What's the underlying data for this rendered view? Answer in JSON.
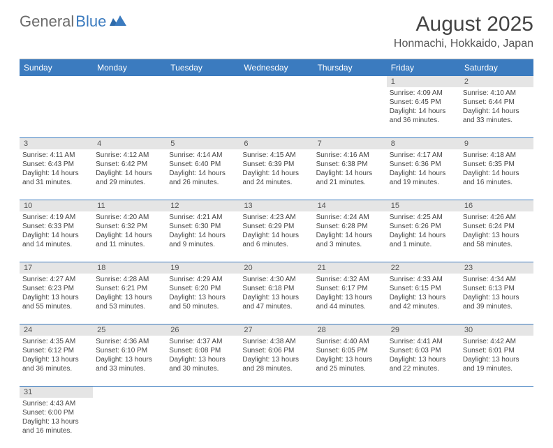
{
  "brand": {
    "part1": "General",
    "part2": "Blue"
  },
  "title": "August 2025",
  "location": "Honmachi, Hokkaido, Japan",
  "colors": {
    "header_bg": "#3b7bbf",
    "header_text": "#ffffff",
    "daynum_bg": "#e5e5e5",
    "text": "#444444",
    "rule": "#3b7bbf"
  },
  "day_names": [
    "Sunday",
    "Monday",
    "Tuesday",
    "Wednesday",
    "Thursday",
    "Friday",
    "Saturday"
  ],
  "weeks": [
    [
      null,
      null,
      null,
      null,
      null,
      {
        "n": "1",
        "sunrise": "Sunrise: 4:09 AM",
        "sunset": "Sunset: 6:45 PM",
        "daylight": "Daylight: 14 hours and 36 minutes."
      },
      {
        "n": "2",
        "sunrise": "Sunrise: 4:10 AM",
        "sunset": "Sunset: 6:44 PM",
        "daylight": "Daylight: 14 hours and 33 minutes."
      }
    ],
    [
      {
        "n": "3",
        "sunrise": "Sunrise: 4:11 AM",
        "sunset": "Sunset: 6:43 PM",
        "daylight": "Daylight: 14 hours and 31 minutes."
      },
      {
        "n": "4",
        "sunrise": "Sunrise: 4:12 AM",
        "sunset": "Sunset: 6:42 PM",
        "daylight": "Daylight: 14 hours and 29 minutes."
      },
      {
        "n": "5",
        "sunrise": "Sunrise: 4:14 AM",
        "sunset": "Sunset: 6:40 PM",
        "daylight": "Daylight: 14 hours and 26 minutes."
      },
      {
        "n": "6",
        "sunrise": "Sunrise: 4:15 AM",
        "sunset": "Sunset: 6:39 PM",
        "daylight": "Daylight: 14 hours and 24 minutes."
      },
      {
        "n": "7",
        "sunrise": "Sunrise: 4:16 AM",
        "sunset": "Sunset: 6:38 PM",
        "daylight": "Daylight: 14 hours and 21 minutes."
      },
      {
        "n": "8",
        "sunrise": "Sunrise: 4:17 AM",
        "sunset": "Sunset: 6:36 PM",
        "daylight": "Daylight: 14 hours and 19 minutes."
      },
      {
        "n": "9",
        "sunrise": "Sunrise: 4:18 AM",
        "sunset": "Sunset: 6:35 PM",
        "daylight": "Daylight: 14 hours and 16 minutes."
      }
    ],
    [
      {
        "n": "10",
        "sunrise": "Sunrise: 4:19 AM",
        "sunset": "Sunset: 6:33 PM",
        "daylight": "Daylight: 14 hours and 14 minutes."
      },
      {
        "n": "11",
        "sunrise": "Sunrise: 4:20 AM",
        "sunset": "Sunset: 6:32 PM",
        "daylight": "Daylight: 14 hours and 11 minutes."
      },
      {
        "n": "12",
        "sunrise": "Sunrise: 4:21 AM",
        "sunset": "Sunset: 6:30 PM",
        "daylight": "Daylight: 14 hours and 9 minutes."
      },
      {
        "n": "13",
        "sunrise": "Sunrise: 4:23 AM",
        "sunset": "Sunset: 6:29 PM",
        "daylight": "Daylight: 14 hours and 6 minutes."
      },
      {
        "n": "14",
        "sunrise": "Sunrise: 4:24 AM",
        "sunset": "Sunset: 6:28 PM",
        "daylight": "Daylight: 14 hours and 3 minutes."
      },
      {
        "n": "15",
        "sunrise": "Sunrise: 4:25 AM",
        "sunset": "Sunset: 6:26 PM",
        "daylight": "Daylight: 14 hours and 1 minute."
      },
      {
        "n": "16",
        "sunrise": "Sunrise: 4:26 AM",
        "sunset": "Sunset: 6:24 PM",
        "daylight": "Daylight: 13 hours and 58 minutes."
      }
    ],
    [
      {
        "n": "17",
        "sunrise": "Sunrise: 4:27 AM",
        "sunset": "Sunset: 6:23 PM",
        "daylight": "Daylight: 13 hours and 55 minutes."
      },
      {
        "n": "18",
        "sunrise": "Sunrise: 4:28 AM",
        "sunset": "Sunset: 6:21 PM",
        "daylight": "Daylight: 13 hours and 53 minutes."
      },
      {
        "n": "19",
        "sunrise": "Sunrise: 4:29 AM",
        "sunset": "Sunset: 6:20 PM",
        "daylight": "Daylight: 13 hours and 50 minutes."
      },
      {
        "n": "20",
        "sunrise": "Sunrise: 4:30 AM",
        "sunset": "Sunset: 6:18 PM",
        "daylight": "Daylight: 13 hours and 47 minutes."
      },
      {
        "n": "21",
        "sunrise": "Sunrise: 4:32 AM",
        "sunset": "Sunset: 6:17 PM",
        "daylight": "Daylight: 13 hours and 44 minutes."
      },
      {
        "n": "22",
        "sunrise": "Sunrise: 4:33 AM",
        "sunset": "Sunset: 6:15 PM",
        "daylight": "Daylight: 13 hours and 42 minutes."
      },
      {
        "n": "23",
        "sunrise": "Sunrise: 4:34 AM",
        "sunset": "Sunset: 6:13 PM",
        "daylight": "Daylight: 13 hours and 39 minutes."
      }
    ],
    [
      {
        "n": "24",
        "sunrise": "Sunrise: 4:35 AM",
        "sunset": "Sunset: 6:12 PM",
        "daylight": "Daylight: 13 hours and 36 minutes."
      },
      {
        "n": "25",
        "sunrise": "Sunrise: 4:36 AM",
        "sunset": "Sunset: 6:10 PM",
        "daylight": "Daylight: 13 hours and 33 minutes."
      },
      {
        "n": "26",
        "sunrise": "Sunrise: 4:37 AM",
        "sunset": "Sunset: 6:08 PM",
        "daylight": "Daylight: 13 hours and 30 minutes."
      },
      {
        "n": "27",
        "sunrise": "Sunrise: 4:38 AM",
        "sunset": "Sunset: 6:06 PM",
        "daylight": "Daylight: 13 hours and 28 minutes."
      },
      {
        "n": "28",
        "sunrise": "Sunrise: 4:40 AM",
        "sunset": "Sunset: 6:05 PM",
        "daylight": "Daylight: 13 hours and 25 minutes."
      },
      {
        "n": "29",
        "sunrise": "Sunrise: 4:41 AM",
        "sunset": "Sunset: 6:03 PM",
        "daylight": "Daylight: 13 hours and 22 minutes."
      },
      {
        "n": "30",
        "sunrise": "Sunrise: 4:42 AM",
        "sunset": "Sunset: 6:01 PM",
        "daylight": "Daylight: 13 hours and 19 minutes."
      }
    ],
    [
      {
        "n": "31",
        "sunrise": "Sunrise: 4:43 AM",
        "sunset": "Sunset: 6:00 PM",
        "daylight": "Daylight: 13 hours and 16 minutes."
      },
      null,
      null,
      null,
      null,
      null,
      null
    ]
  ]
}
